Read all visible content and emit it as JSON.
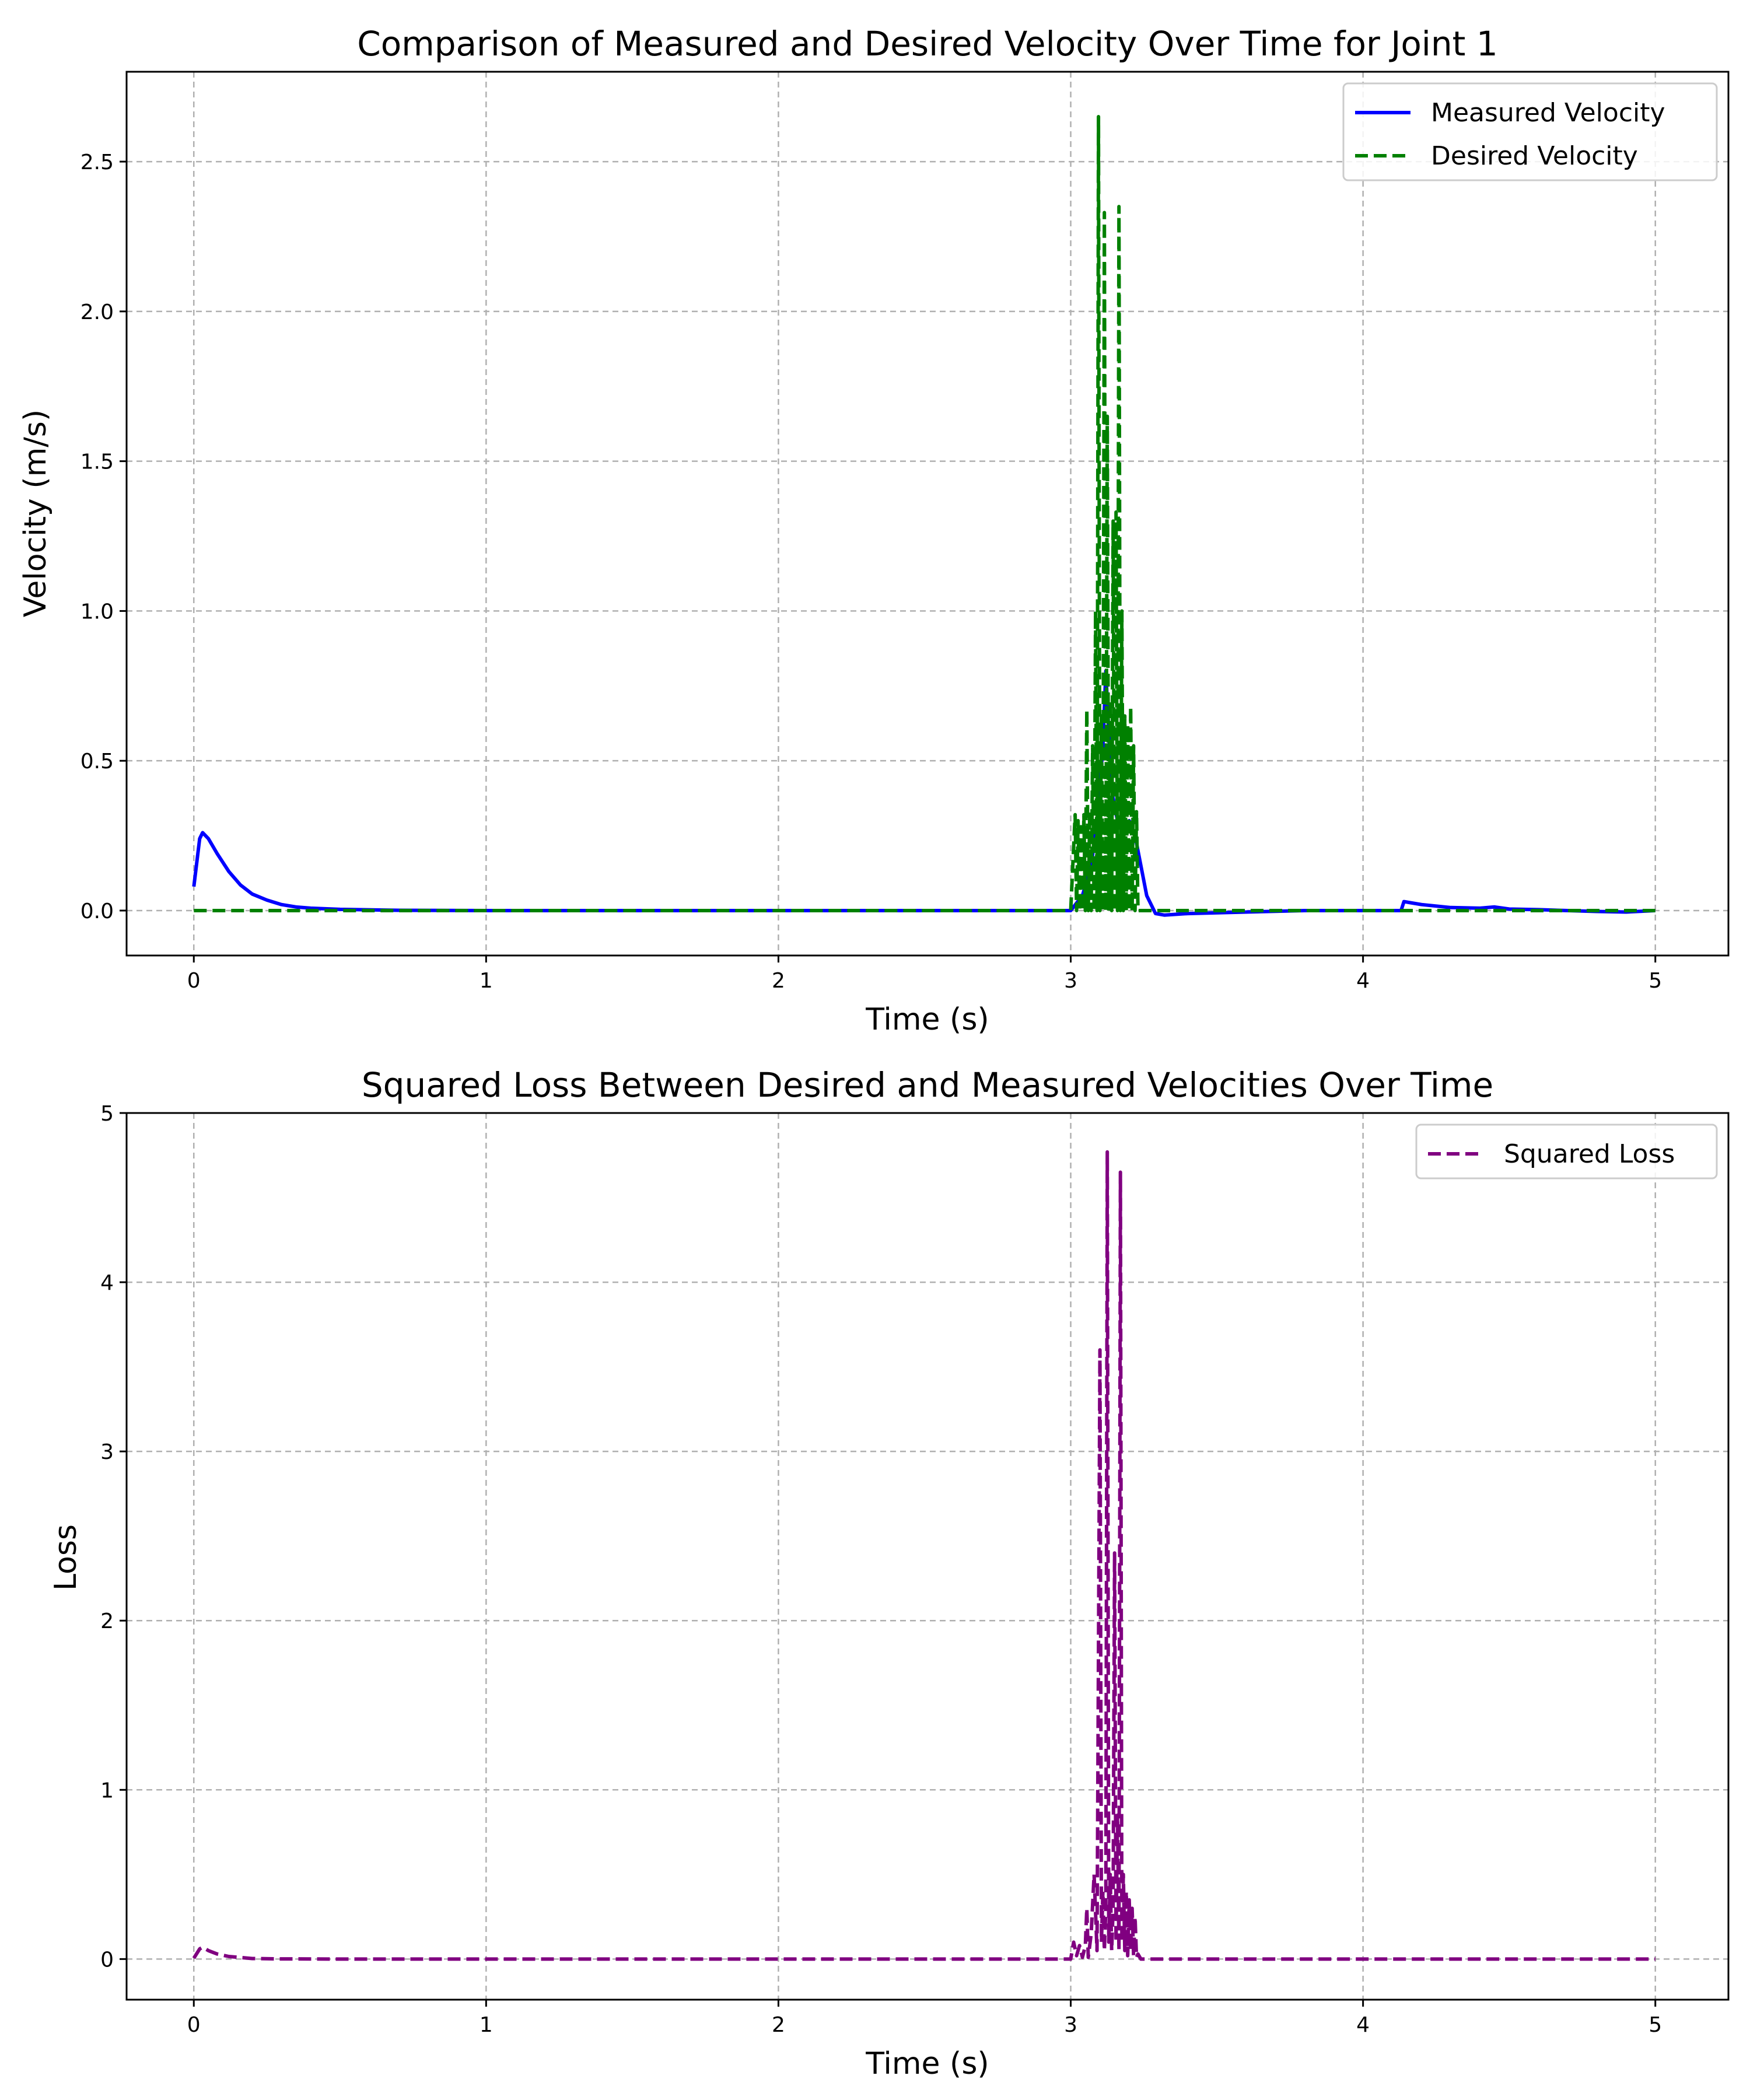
{
  "chart_data": [
    {
      "type": "line",
      "title": "Comparison of Measured and Desired Velocity Over Time for Joint 1",
      "xlabel": "Time (s)",
      "ylabel": "Velocity (m/s)",
      "xlim": [
        -0.23,
        5.25
      ],
      "ylim": [
        -0.15,
        2.8
      ],
      "xticks": [
        0,
        1,
        2,
        3,
        4,
        5
      ],
      "xtick_labels": [
        "0",
        "1",
        "2",
        "3",
        "4",
        "5"
      ],
      "yticks": [
        0.0,
        0.5,
        1.0,
        1.5,
        2.0,
        2.5
      ],
      "ytick_labels": [
        "0.0",
        "0.5",
        "1.0",
        "1.5",
        "2.0",
        "2.5"
      ],
      "grid": true,
      "legend_position": "top-right",
      "series": [
        {
          "name": "Measured Velocity",
          "color": "#0000ff",
          "style": "solid",
          "x": [
            0.0,
            0.02,
            0.03,
            0.05,
            0.08,
            0.12,
            0.16,
            0.2,
            0.25,
            0.3,
            0.35,
            0.4,
            0.5,
            0.7,
            1.0,
            2.0,
            3.0,
            3.04,
            3.07,
            3.09,
            3.11,
            3.12,
            3.13,
            3.14,
            3.16,
            3.18,
            3.2,
            3.22,
            3.24,
            3.26,
            3.29,
            3.32,
            3.4,
            3.6,
            3.8,
            4.0,
            4.13,
            4.14,
            4.2,
            4.3,
            4.4,
            4.45,
            4.5,
            4.6,
            4.7,
            4.8,
            4.9,
            5.0
          ],
          "y": [
            0.08,
            0.24,
            0.26,
            0.24,
            0.19,
            0.13,
            0.085,
            0.055,
            0.035,
            0.02,
            0.012,
            0.008,
            0.004,
            0.001,
            0.0,
            0.0,
            0.0,
            0.05,
            0.15,
            0.3,
            0.55,
            0.8,
            0.6,
            0.4,
            0.3,
            0.28,
            0.3,
            0.25,
            0.15,
            0.05,
            -0.01,
            -0.015,
            -0.01,
            -0.005,
            0.0,
            0.0,
            0.0,
            0.03,
            0.02,
            0.01,
            0.008,
            0.012,
            0.005,
            0.003,
            0.0,
            -0.003,
            -0.005,
            0.0
          ]
        },
        {
          "name": "Desired Velocity",
          "color": "#008000",
          "style": "dashed",
          "x": [
            0.0,
            1.0,
            2.0,
            3.0,
            3.015,
            3.02,
            3.025,
            3.03,
            3.035,
            3.04,
            3.045,
            3.05,
            3.055,
            3.06,
            3.065,
            3.07,
            3.075,
            3.08,
            3.085,
            3.09,
            3.095,
            3.1,
            3.105,
            3.11,
            3.115,
            3.12,
            3.125,
            3.13,
            3.135,
            3.14,
            3.145,
            3.15,
            3.155,
            3.16,
            3.165,
            3.17,
            3.175,
            3.18,
            3.185,
            3.19,
            3.195,
            3.2,
            3.205,
            3.21,
            3.215,
            3.22,
            3.225,
            3.23,
            3.24,
            3.3,
            4.0,
            5.0
          ],
          "y": [
            0.0,
            0.0,
            0.0,
            0.0,
            0.32,
            0.0,
            0.3,
            0.0,
            0.28,
            0.0,
            0.32,
            0.0,
            0.67,
            0.0,
            0.33,
            0.0,
            0.55,
            0.0,
            1.0,
            0.0,
            2.65,
            0.0,
            0.65,
            0.0,
            2.33,
            0.0,
            1.65,
            0.0,
            0.7,
            0.0,
            1.3,
            0.0,
            1.33,
            0.0,
            2.35,
            0.0,
            1.0,
            0.0,
            0.65,
            0.0,
            0.62,
            0.0,
            0.68,
            0.0,
            0.55,
            0.0,
            0.33,
            0.0,
            0.0,
            0.0,
            0.0,
            0.0
          ]
        }
      ]
    },
    {
      "type": "line",
      "title": "Squared Loss Between Desired and Measured Velocities Over Time",
      "xlabel": "Time (s)",
      "ylabel": "Loss",
      "xlim": [
        -0.23,
        5.25
      ],
      "ylim": [
        -0.24,
        5.0
      ],
      "xticks": [
        0,
        1,
        2,
        3,
        4,
        5
      ],
      "xtick_labels": [
        "0",
        "1",
        "2",
        "3",
        "4",
        "5"
      ],
      "yticks": [
        0,
        1,
        2,
        3,
        4,
        5
      ],
      "ytick_labels": [
        "0",
        "1",
        "2",
        "3",
        "4",
        "5"
      ],
      "grid": true,
      "legend_position": "top-right",
      "series": [
        {
          "name": "Squared Loss",
          "color": "#800080",
          "style": "dashed",
          "x": [
            0.0,
            0.02,
            0.03,
            0.05,
            0.08,
            0.12,
            0.2,
            0.3,
            0.5,
            1.0,
            2.0,
            3.0,
            3.01,
            3.02,
            3.03,
            3.04,
            3.05,
            3.055,
            3.06,
            3.065,
            3.07,
            3.08,
            3.09,
            3.1,
            3.105,
            3.11,
            3.115,
            3.12,
            3.125,
            3.13,
            3.135,
            3.14,
            3.145,
            3.15,
            3.155,
            3.16,
            3.165,
            3.17,
            3.175,
            3.18,
            3.185,
            3.19,
            3.195,
            3.2,
            3.205,
            3.21,
            3.215,
            3.22,
            3.225,
            3.23,
            3.24,
            3.3,
            4.0,
            5.0
          ],
          "y": [
            0.005,
            0.06,
            0.07,
            0.05,
            0.03,
            0.015,
            0.003,
            0.001,
            0.0,
            0.0,
            0.0,
            0.0,
            0.1,
            0.02,
            0.08,
            0.01,
            0.08,
            0.3,
            0.01,
            0.08,
            0.15,
            0.5,
            0.05,
            3.6,
            0.1,
            0.4,
            0.05,
            0.3,
            4.77,
            0.1,
            0.5,
            0.05,
            0.3,
            2.4,
            0.1,
            0.85,
            0.05,
            4.65,
            0.1,
            0.5,
            0.05,
            0.4,
            0.02,
            0.35,
            0.05,
            0.3,
            0.02,
            0.25,
            0.01,
            0.03,
            0.0,
            0.0,
            0.0,
            0.0
          ]
        }
      ]
    }
  ]
}
